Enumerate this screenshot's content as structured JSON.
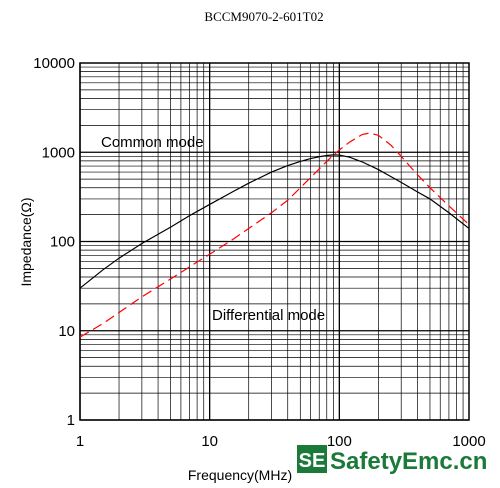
{
  "chart_data": {
    "type": "line",
    "title": "BCCM9070-2-601T02",
    "xlabel": "Frequency(MHz)",
    "ylabel": "Impedance(Ω)",
    "xscale": "log",
    "yscale": "log",
    "xlim": [
      1,
      1000
    ],
    "ylim": [
      1,
      10000
    ],
    "xticks": [
      "1",
      "10",
      "100",
      "1000"
    ],
    "yticks": [
      "1",
      "10",
      "100",
      "1000",
      "10000"
    ],
    "grid": true,
    "series": [
      {
        "name": "Common mode",
        "color": "#000000",
        "style": "solid",
        "x": [
          1,
          1.5,
          2,
          3,
          5,
          7,
          10,
          15,
          20,
          30,
          40,
          50,
          60,
          70,
          80,
          90,
          100,
          120,
          150,
          200,
          300,
          400,
          500,
          700,
          1000
        ],
        "y": [
          30,
          48,
          65,
          95,
          145,
          195,
          260,
          360,
          450,
          600,
          710,
          790,
          850,
          890,
          920,
          935,
          930,
          880,
          780,
          640,
          460,
          360,
          300,
          210,
          140
        ]
      },
      {
        "name": "Differential mode",
        "color": "#ff0000",
        "style": "dashed",
        "x": [
          1,
          1.5,
          2,
          3,
          5,
          7,
          10,
          15,
          20,
          30,
          40,
          50,
          60,
          70,
          80,
          90,
          100,
          120,
          150,
          170,
          200,
          250,
          300,
          400,
          500,
          700,
          1000
        ],
        "y": [
          8.5,
          12,
          16,
          24,
          38,
          52,
          72,
          105,
          140,
          210,
          290,
          400,
          520,
          650,
          790,
          930,
          1060,
          1300,
          1580,
          1640,
          1550,
          1200,
          900,
          560,
          400,
          250,
          155
        ]
      }
    ]
  },
  "annotations": {
    "common": "Common mode",
    "differential": "Differential mode"
  },
  "watermark": {
    "badge": "SE",
    "text": "SafetyEmc.cn",
    "color": "#1b7a3a"
  }
}
